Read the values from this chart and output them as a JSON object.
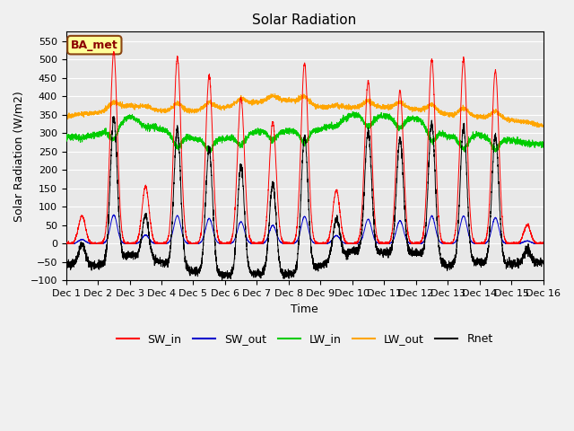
{
  "title": "Solar Radiation",
  "ylabel": "Solar Radiation (W/m2)",
  "xlabel": "Time",
  "station_label": "BA_met",
  "ylim": [
    -100,
    575
  ],
  "yticks": [
    -100,
    -50,
    0,
    50,
    100,
    150,
    200,
    250,
    300,
    350,
    400,
    450,
    500,
    550
  ],
  "num_days": 15,
  "points_per_day": 288,
  "colors": {
    "SW_in": "#FF0000",
    "SW_out": "#0000CC",
    "LW_in": "#00CC00",
    "LW_out": "#FFA500",
    "Rnet": "#000000"
  },
  "SW_in_peaks": [
    75,
    520,
    155,
    505,
    455,
    395,
    330,
    490,
    145,
    440,
    415,
    500,
    500,
    470,
    50
  ],
  "legend_labels": [
    "SW_in",
    "SW_out",
    "LW_in",
    "LW_out",
    "Rnet"
  ],
  "plot_bg_color": "#E8E8E8",
  "fig_bg_color": "#F0F0F0",
  "title_fontsize": 11,
  "label_fontsize": 9,
  "tick_fontsize": 8,
  "legend_fontsize": 9
}
